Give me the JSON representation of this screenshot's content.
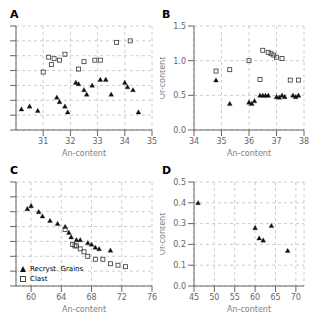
{
  "chart_data": [
    {
      "type": "scatter",
      "title": "A",
      "xlabel": "An-content",
      "xlim": [
        30.0,
        35.0
      ],
      "xticks": [
        31,
        32,
        33,
        34,
        35
      ],
      "ylim": [
        0.3,
        1.0
      ],
      "yticks": [
        0.3,
        0.4,
        0.5,
        0.6,
        0.7,
        0.8,
        0.9,
        1.0
      ],
      "grid": true,
      "tick_labels": "x",
      "series": [
        {
          "name": "Recryst. Grains",
          "color": "#111111",
          "marker": "triangle",
          "x": [
            30.2,
            30.5,
            30.8,
            31.5,
            31.6,
            31.8,
            31.9,
            32.2,
            32.3,
            32.5,
            32.6,
            32.8,
            33.1,
            33.3,
            33.5,
            34.0,
            34.1,
            34.3,
            34.5
          ],
          "values": [
            0.44,
            0.46,
            0.43,
            0.52,
            0.49,
            0.46,
            0.42,
            0.62,
            0.61,
            0.57,
            0.54,
            0.6,
            0.64,
            0.64,
            0.54,
            0.62,
            0.59,
            0.57,
            0.42
          ]
        },
        {
          "name": "Clast",
          "color": "#333333",
          "marker": "square",
          "x": [
            31.2,
            31.4,
            31.6,
            31.8,
            31.3,
            31.0,
            32.3,
            32.5,
            32.9,
            33.1,
            33.7,
            34.2
          ],
          "values": [
            0.79,
            0.78,
            0.77,
            0.81,
            0.74,
            0.69,
            0.71,
            0.76,
            0.77,
            0.77,
            0.89,
            0.9
          ]
        }
      ]
    },
    {
      "type": "scatter",
      "title": "B",
      "xlabel": "An-content",
      "ylabel": "Or-content",
      "xlim": [
        34.0,
        38.0
      ],
      "xticks": [
        34,
        35,
        36,
        37,
        38
      ],
      "ylim": [
        0.0,
        1.5
      ],
      "yticks": [
        {
          "value": 0,
          "label": "0.0"
        },
        0.5,
        {
          "value": 1,
          "label": "1.0"
        },
        1.5
      ],
      "grid": true,
      "series": [
        {
          "name": "Recryst. Grains",
          "color": "#111111",
          "marker": "triangle",
          "x": [
            34.8,
            35.3,
            36.0,
            36.1,
            36.2,
            36.4,
            36.5,
            36.6,
            36.7,
            37.0,
            37.1,
            37.2,
            37.3,
            37.6,
            37.7,
            37.8
          ],
          "values": [
            0.72,
            0.38,
            0.4,
            0.38,
            0.42,
            0.5,
            0.5,
            0.5,
            0.5,
            0.48,
            0.47,
            0.5,
            0.48,
            0.5,
            0.48,
            0.5
          ]
        },
        {
          "name": "Clast",
          "color": "#333333",
          "marker": "square",
          "x": [
            34.8,
            35.3,
            36.0,
            36.4,
            36.5,
            36.7,
            36.8,
            36.9,
            37.0,
            37.2,
            37.5,
            37.8
          ],
          "values": [
            0.85,
            0.87,
            1.0,
            0.73,
            1.15,
            1.12,
            1.1,
            1.08,
            1.05,
            1.03,
            0.72,
            0.72
          ]
        }
      ]
    },
    {
      "type": "scatter",
      "title": "C",
      "xlabel": "An-content",
      "xlim": [
        58.0,
        76.0
      ],
      "xticks": [
        60,
        64,
        68,
        72,
        76
      ],
      "ylim": [
        0.3,
        1.0
      ],
      "yticks": [
        0.3,
        0.4,
        0.5,
        0.6,
        0.7,
        0.8,
        0.9,
        1.0
      ],
      "grid": true,
      "tick_labels": "x",
      "legend": "lower left",
      "series": [
        {
          "name": "Recryst. Grains",
          "color": "#111111",
          "marker": "triangle",
          "x": [
            59.5,
            60.0,
            61.0,
            61.5,
            62.5,
            63.5,
            64.5,
            65.0,
            65.3,
            66.0,
            66.5,
            67.5,
            68.0,
            68.5,
            69.0,
            70.5
          ],
          "values": [
            0.82,
            0.84,
            0.8,
            0.77,
            0.74,
            0.72,
            0.7,
            0.66,
            0.63,
            0.61,
            0.61,
            0.59,
            0.58,
            0.56,
            0.55,
            0.54
          ]
        },
        {
          "name": "Clast",
          "color": "#333333",
          "marker": "square",
          "x": [
            64.5,
            65.5,
            65.8,
            66.0,
            66.5,
            67.0,
            67.5,
            68.5,
            69.5,
            70.5,
            71.5,
            72.5
          ],
          "values": [
            0.68,
            0.58,
            0.57,
            0.57,
            0.55,
            0.53,
            0.5,
            0.48,
            0.48,
            0.45,
            0.44,
            0.43
          ]
        }
      ]
    },
    {
      "type": "scatter",
      "title": "D",
      "xlabel": "An-content",
      "ylabel": "Or-content",
      "xlim": [
        45.0,
        72.0
      ],
      "xticks": [
        45,
        50,
        55,
        60,
        65,
        70
      ],
      "ylim": [
        0.0,
        0.5
      ],
      "yticks": [
        {
          "value": 0,
          "label": "0.0"
        },
        0.1,
        0.2,
        0.3,
        0.4,
        0.5
      ],
      "grid": true,
      "series": [
        {
          "name": "Recryst. Grains",
          "color": "#111111",
          "marker": "triangle",
          "x": [
            46.0,
            60.0,
            61.0,
            62.0,
            64.0,
            68.0
          ],
          "values": [
            0.4,
            0.28,
            0.23,
            0.22,
            0.29,
            0.17
          ]
        }
      ]
    }
  ]
}
